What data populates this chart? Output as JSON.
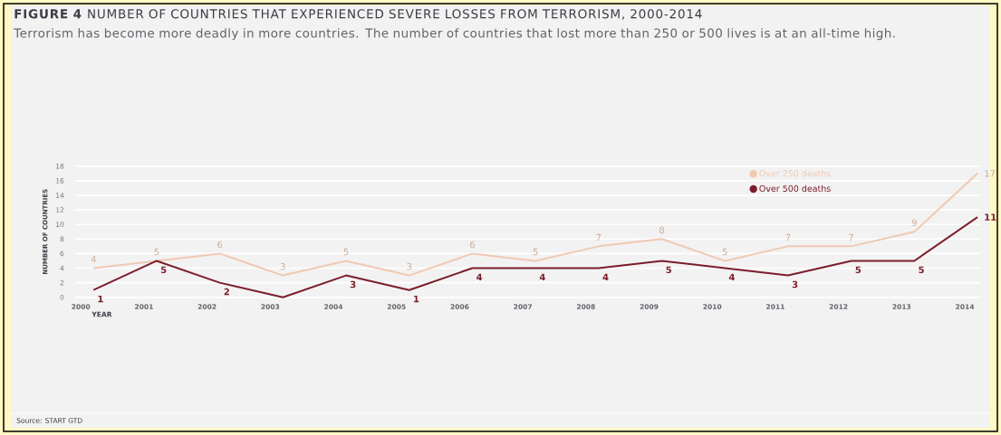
{
  "chart_data": {
    "type": "line",
    "title": "**FIGURE 4** NUMBER OF COUNTRIES THAT EXPERIENCED SEVERE LOSSES FROM TERRORISM, 2000-2014",
    "subtitle": "Terrorism has become more deadly in more countries. The number of countries that lost more than 250 or 500 lives is at an all-time high.",
    "xlabel": "YEAR",
    "ylabel": "NUMBER OF COUNTRIES",
    "categories": [
      "2000",
      "2001",
      "2002",
      "2003",
      "2004",
      "2005",
      "2006",
      "2007",
      "2008",
      "2009",
      "2010",
      "2011",
      "2012",
      "2013",
      "2014"
    ],
    "series": [
      {
        "name": "Over 250 deaths",
        "color": "#f0c9b2",
        "values": [
          4,
          5,
          6,
          3,
          5,
          3,
          6,
          5,
          7,
          8,
          5,
          7,
          7,
          9,
          17
        ],
        "value_labels": [
          "4",
          "5",
          "6",
          "3",
          "5",
          "3",
          "6",
          "5",
          "7",
          "8",
          "5",
          "7",
          "7",
          "9",
          "17"
        ]
      },
      {
        "name": "Over 500 deaths",
        "color": "#7b1e2b",
        "values": [
          1,
          5,
          2,
          0,
          3,
          1,
          4,
          4,
          4,
          5,
          4,
          3,
          5,
          5,
          11
        ],
        "value_labels": [
          "1",
          "5",
          "2",
          null,
          "3",
          "1",
          "4",
          "4",
          "4",
          "5",
          "4",
          "3",
          "5",
          "5",
          "11"
        ]
      }
    ],
    "ylim": [
      0,
      18
    ],
    "yticks": [
      0,
      2,
      4,
      6,
      8,
      10,
      12,
      14,
      16,
      18
    ],
    "grid": "y",
    "legend": "top right",
    "marker": "none",
    "line_style": "solid",
    "annotations": [
      "Source: START GTD"
    ]
  }
}
